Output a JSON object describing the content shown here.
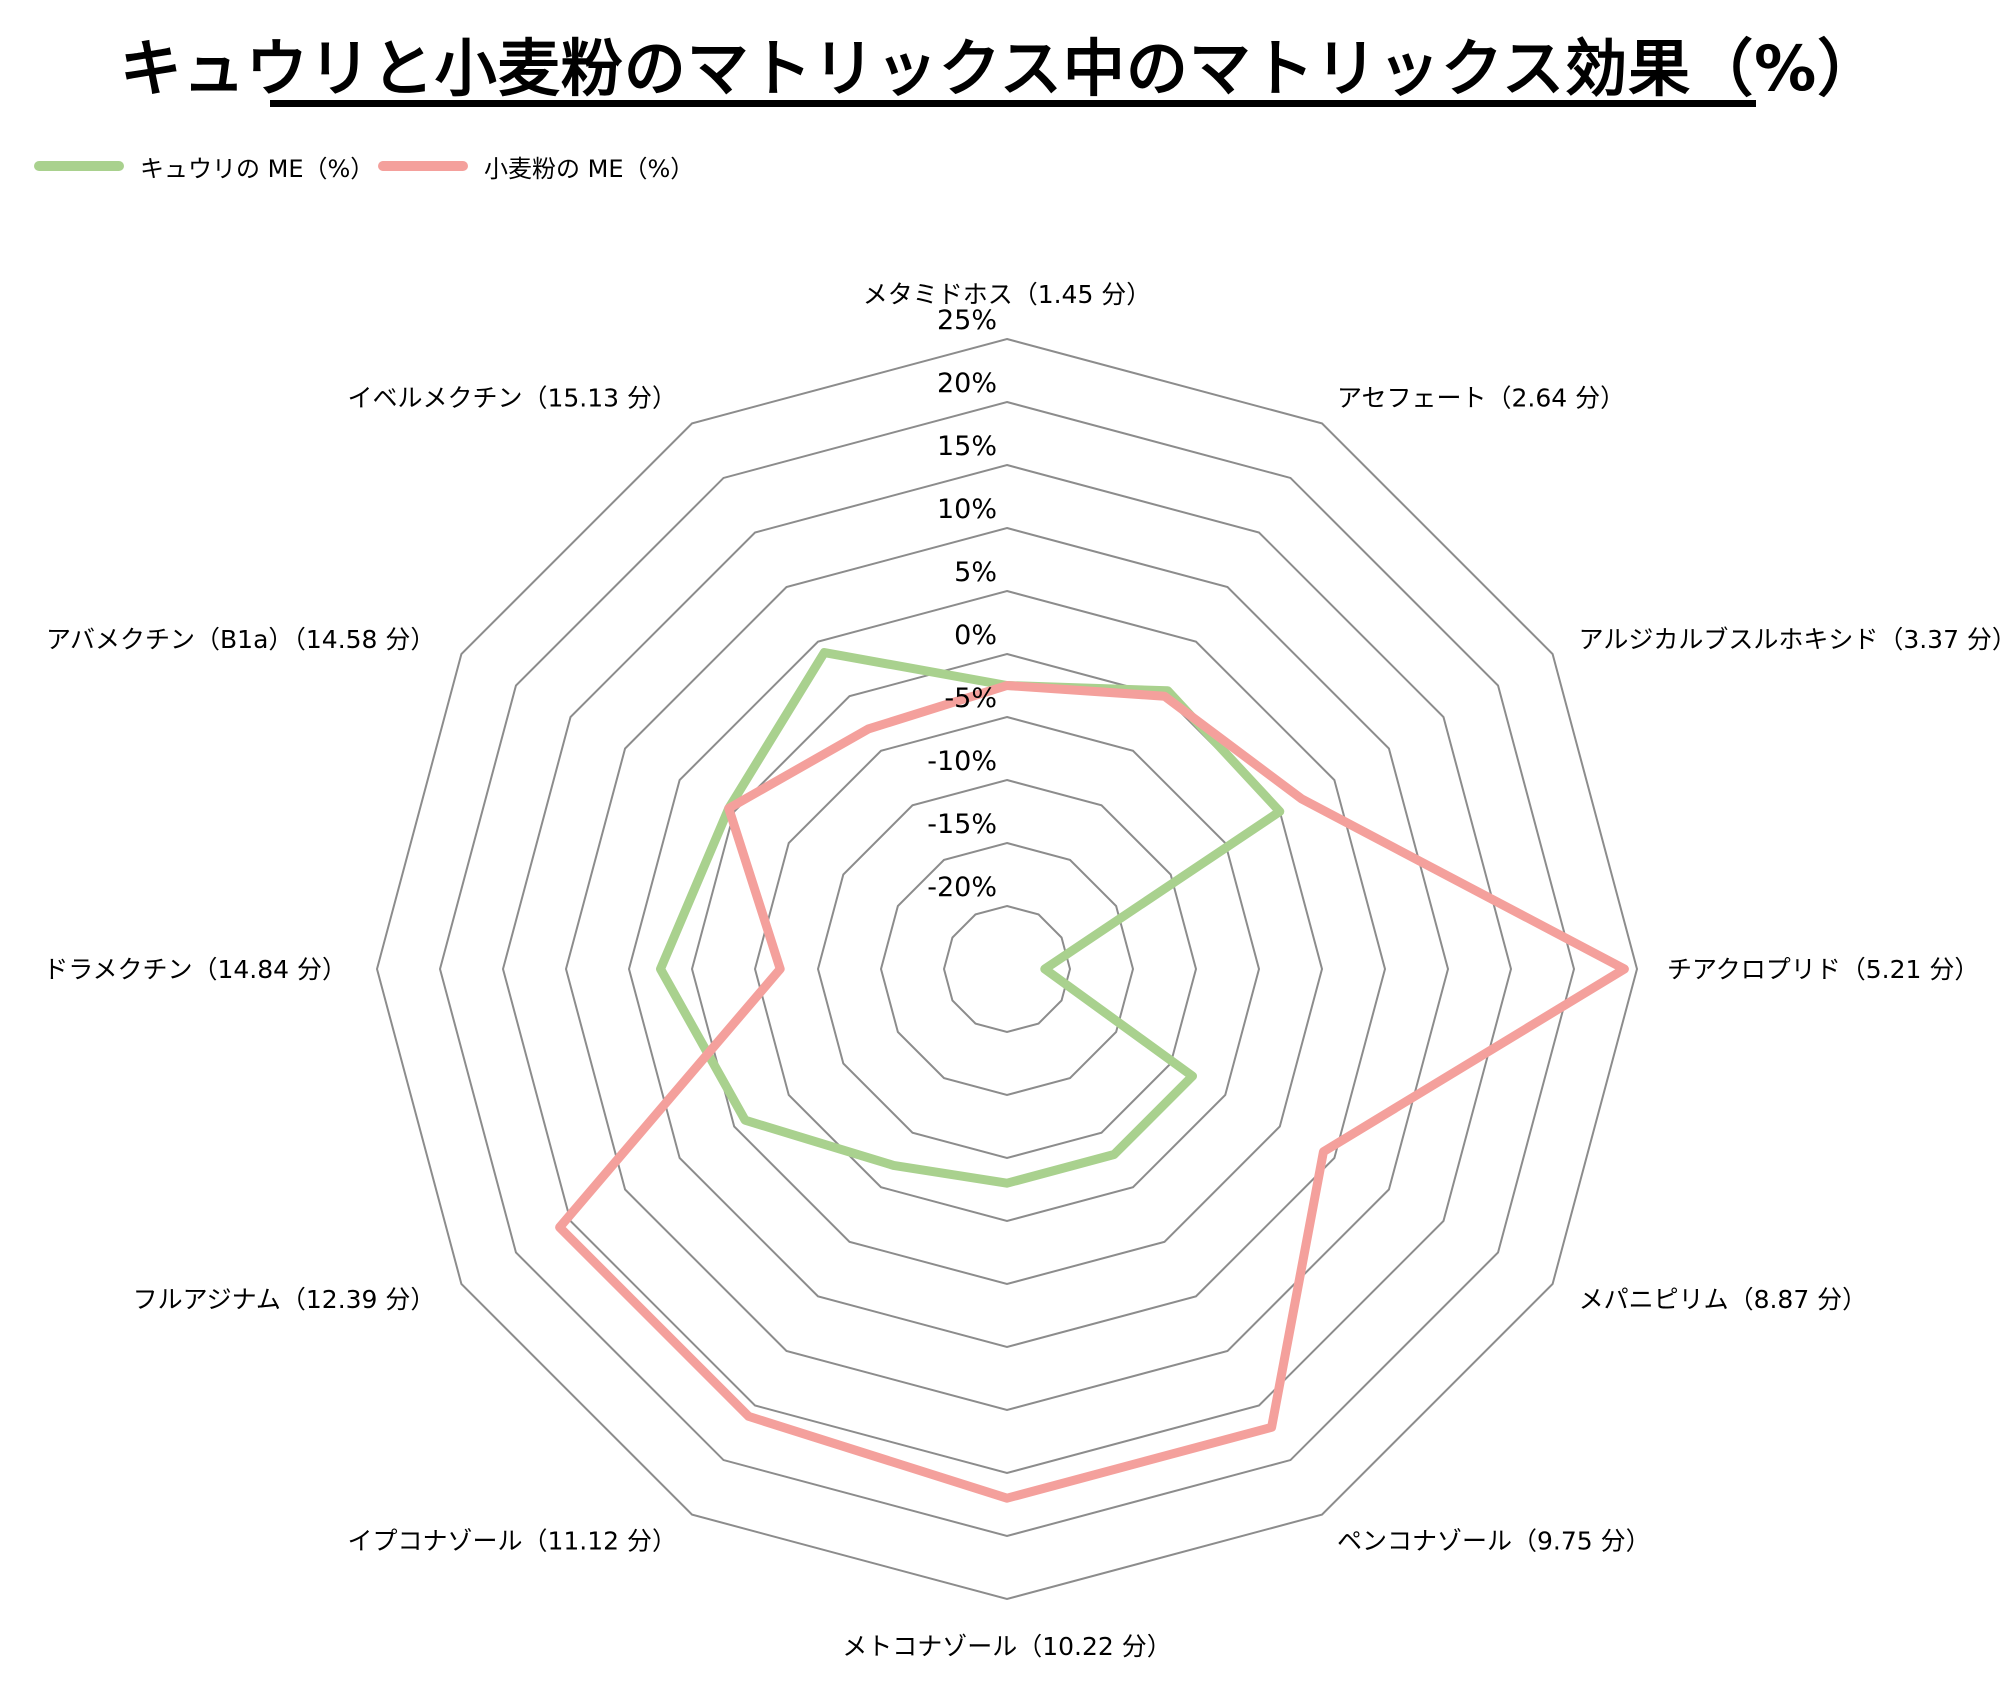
{
  "title": "キュウリと小麦粉のマトリックス中のマトリックス効果（%）",
  "chart_data": {
    "type": "radar",
    "title": "キュウリと小麦粉のマトリックス中のマトリックス効果（%）",
    "categories": [
      "メタミドホス（1.45 分）",
      "アセフェート（2.64 分）",
      "アルジカルブスルホキシド（3.37 分）",
      "チアクロプリド（5.21 分）",
      "メパニピリム（8.87 分）",
      "ペンコナゾール（9.75 分）",
      "メトコナゾール（10.22 分）",
      "イプコナゾール（11.12 分）",
      "フルアジナム（12.39 分）",
      "ドラメクチン（14.84 分）",
      "アバメクチン（B1a）（14.58 分）",
      "イベルメクチン（15.13 分）"
    ],
    "r_axis": {
      "min": -25,
      "max": 25,
      "ticks": [
        -20,
        -15,
        -10,
        -5,
        0,
        5,
        10,
        15,
        20,
        25
      ],
      "tick_labels": [
        "-20%",
        "-15%",
        "-10%",
        "-5%",
        "0%",
        "5%",
        "10%",
        "15%",
        "20%",
        "25%"
      ]
    },
    "series": [
      {
        "name": "キュウリの ME（%）",
        "color": "#a9d18e",
        "values": [
          -2.5,
          0.5,
          0,
          -22,
          -8,
          -8,
          -8,
          -7,
          -1,
          2.5,
          0.5,
          4
        ]
      },
      {
        "name": "小麦粉の ME（%）",
        "color": "#f4a09c",
        "values": [
          -2.5,
          0,
          2,
          24,
          4,
          17,
          17,
          16,
          16,
          -7,
          0.5,
          -3
        ]
      }
    ],
    "legend_position": "top-left",
    "grid": true
  }
}
